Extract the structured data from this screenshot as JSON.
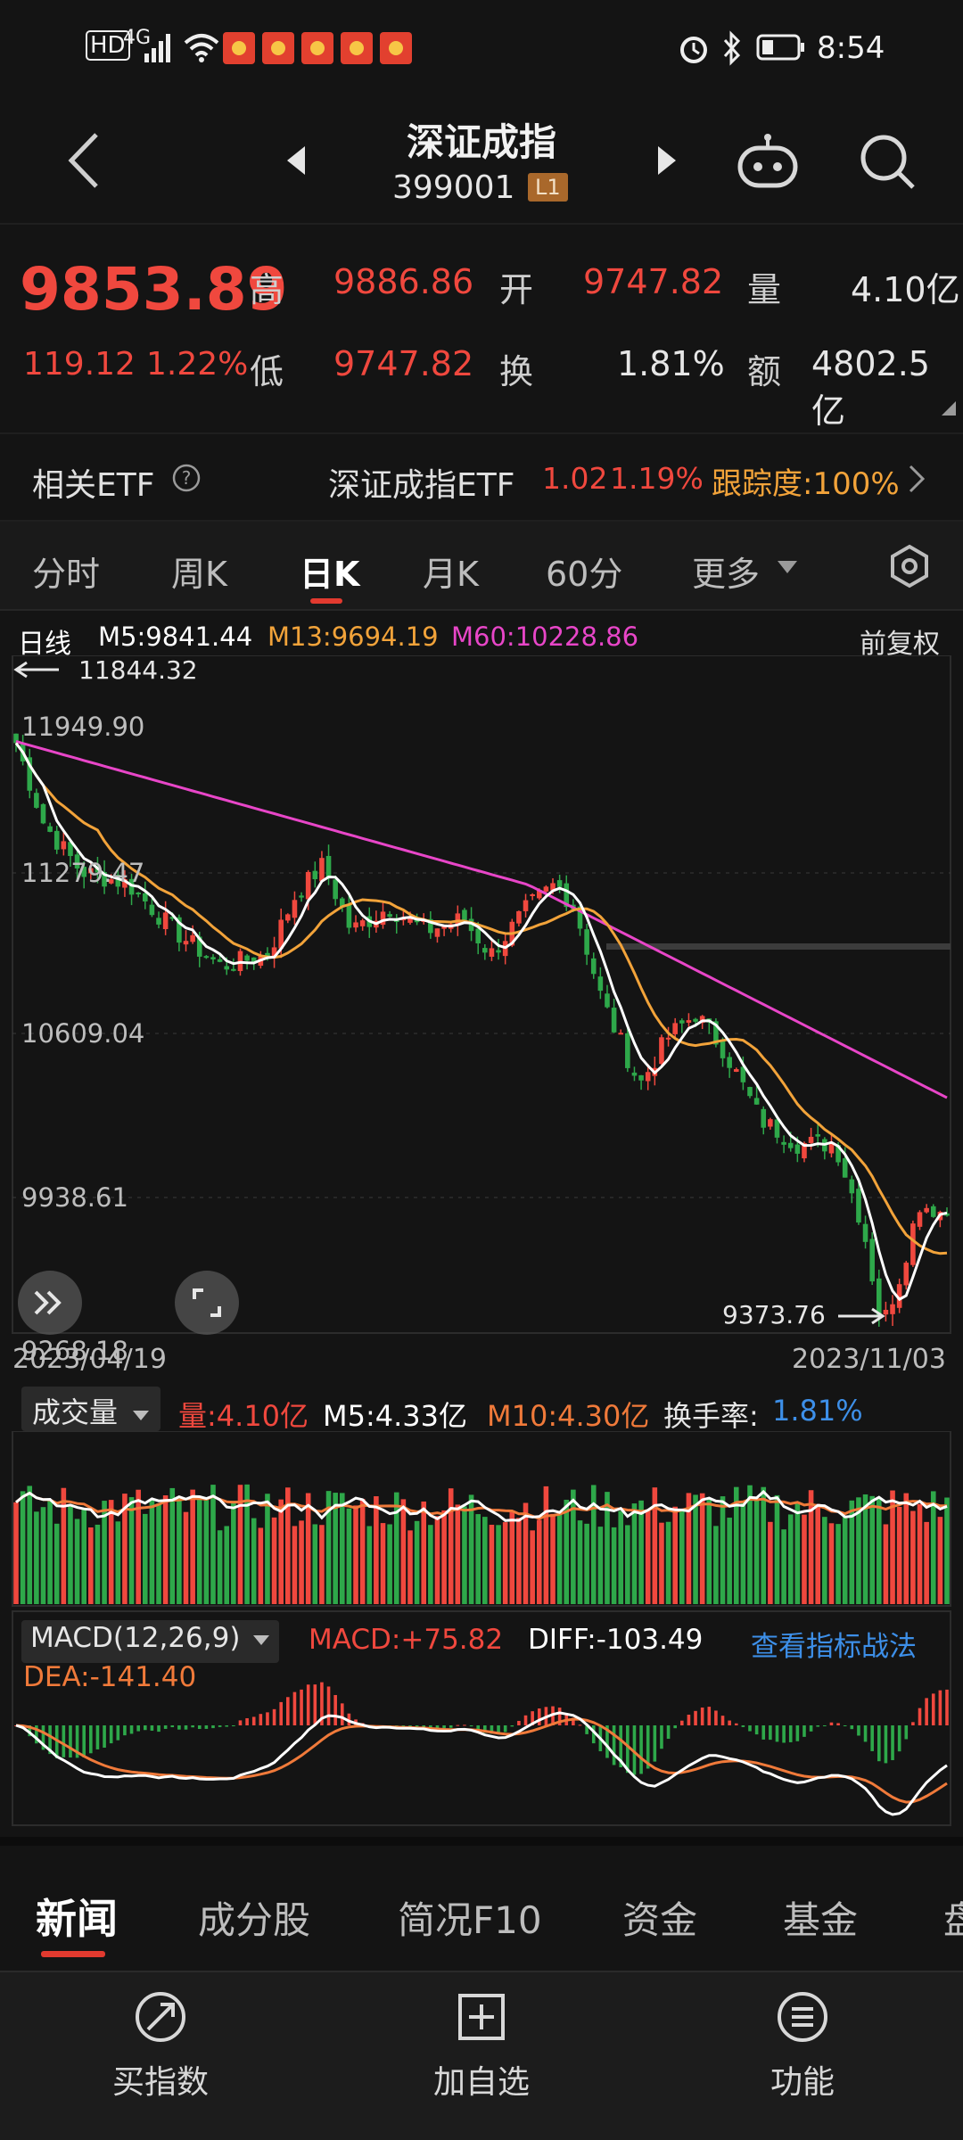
{
  "status": {
    "network": "4G",
    "time": "8:54"
  },
  "header": {
    "title": "深证成指",
    "code": "399001",
    "level": "L1"
  },
  "quote": {
    "price": "9853.89",
    "change": "119.12",
    "change_pct": "1.22%",
    "high_label": "高",
    "high": "9886.86",
    "low_label": "低",
    "low": "9747.82",
    "open_label": "开",
    "open": "9747.82",
    "turnover_label": "换",
    "turnover": "1.81%",
    "volume_label": "量",
    "volume": "4.10亿",
    "amount_label": "额",
    "amount": "4802.5亿"
  },
  "etf": {
    "label": "相关ETF",
    "name": "深证成指ETF",
    "price": "1.02",
    "pct": "1.19%",
    "track": "跟踪度:100%"
  },
  "tabs": [
    "分时",
    "周K",
    "日K",
    "月K",
    "60分",
    "更多"
  ],
  "active_tab": "日K",
  "kline": {
    "period_label": "日线",
    "ma5": "M5:9841.44",
    "ma13": "M13:9694.19",
    "ma60": "M60:10228.86",
    "adjust": "前复权",
    "y_ticks": [
      "11949.90",
      "11279.47",
      "10609.04",
      "9938.61",
      "9268.18"
    ],
    "max_note": "11844.32",
    "min_note": "9373.76",
    "start_date": "2023/04/19",
    "end_date": "2023/11/03"
  },
  "volume_panel": {
    "selector": "成交量",
    "vol": "量:4.10亿",
    "m5": "M5:4.33亿",
    "m10": "M10:4.30亿",
    "turnover_label": "换手率:",
    "turnover": "1.81%"
  },
  "macd_panel": {
    "selector": "MACD(12,26,9)",
    "macd": "MACD:+75.82",
    "diff": "DIFF:-103.49",
    "dea": "DEA:-141.40",
    "link": "查看指标战法"
  },
  "news_tabs": [
    "新闻",
    "成分股",
    "简况F10",
    "资金",
    "基金",
    "盘"
  ],
  "bottom_nav": [
    "买指数",
    "加自选",
    "功能"
  ],
  "colors": {
    "up": "#f0483e",
    "down": "#2ea84a",
    "ma5": "#ffffff",
    "ma13": "#f2a33a",
    "ma60": "#e846c8",
    "accent": "#e23a2f"
  }
}
